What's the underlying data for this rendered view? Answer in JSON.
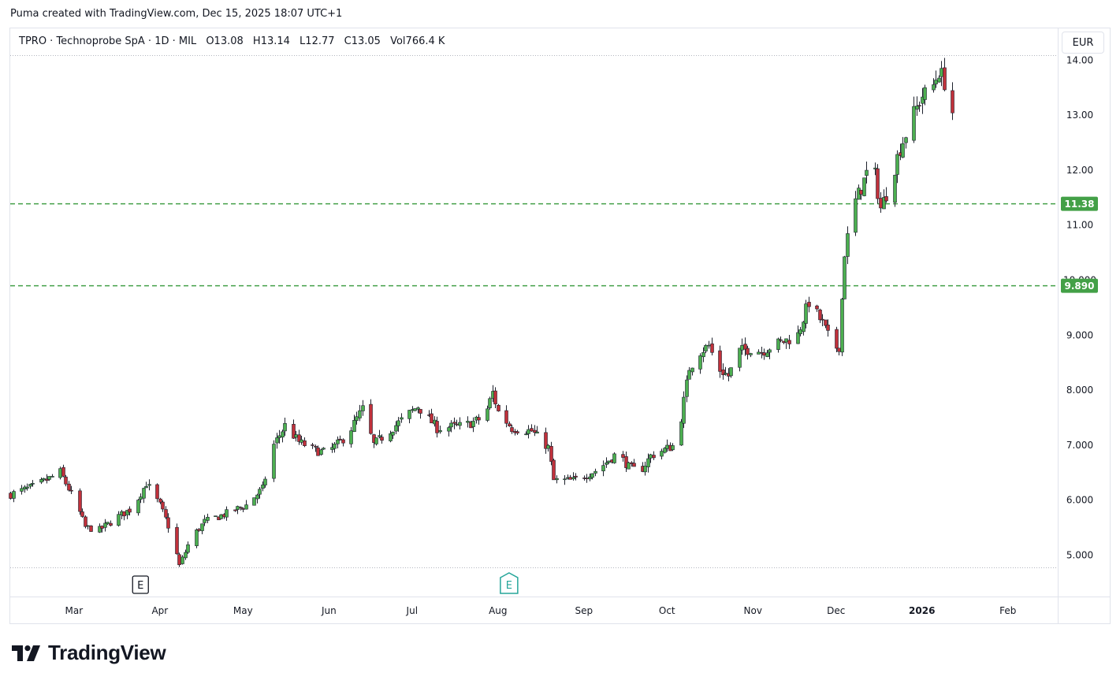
{
  "caption": "Puma created with TradingView.com, Dec 15, 2025 18:07 UTC+1",
  "legend": {
    "symbol": "TPRO · Technoprobe SpA · 1D · MIL",
    "o_label": "O",
    "o_value": "13.08",
    "h_label": "H",
    "h_value": "13.14",
    "l_label": "L",
    "l_value": "12.77",
    "c_label": "C",
    "c_value": "13.05",
    "vol_label": "Vol",
    "vol_value": "766.4 K"
  },
  "currency": "EUR",
  "brand": "TradingView",
  "colors": {
    "up": "#4caf50",
    "down": "#c0313b",
    "line": "#43a047",
    "text": "#131722",
    "grid_text": "#787b86"
  },
  "chart_data": {
    "type": "candlestick",
    "y_ticks": [
      "5.000",
      "6.000",
      "7.000",
      "8.000",
      "9.000",
      "10.000",
      "11.00",
      "12.00",
      "13.00",
      "14.00"
    ],
    "ylim": [
      4.5,
      14.1
    ],
    "x_ticks": [
      "Mar",
      "Apr",
      "May",
      "Jun",
      "Jul",
      "Aug",
      "Sep",
      "Oct",
      "Nov",
      "Dec",
      "2026",
      "Feb"
    ],
    "x_tick_dates": [
      "2025-03-01",
      "2025-04-01",
      "2025-05-01",
      "2025-06-01",
      "2025-07-01",
      "2025-08-01",
      "2025-09-01",
      "2025-10-01",
      "2025-11-01",
      "2025-12-01",
      "2026-01-01",
      "2026-02-01"
    ],
    "xlim": [
      "2025-02-06",
      "2026-02-19"
    ],
    "horizontal_lines": [
      {
        "label": "11.38",
        "value": 11.38
      },
      {
        "label": "9.890",
        "value": 9.89
      }
    ],
    "earnings_markers": [
      {
        "label": "E",
        "date": "2025-03-25",
        "style": "past"
      },
      {
        "label": "E",
        "date": "2025-08-05",
        "style": "upcoming"
      }
    ],
    "anchors": [
      [
        "2025-02-06",
        6.1
      ],
      [
        "2025-02-15",
        6.25
      ],
      [
        "2025-02-24",
        6.5
      ],
      [
        "2025-03-02",
        5.9
      ],
      [
        "2025-03-05",
        5.5
      ],
      [
        "2025-03-10",
        5.45
      ],
      [
        "2025-03-17",
        5.7
      ],
      [
        "2025-03-22",
        5.85
      ],
      [
        "2025-03-27",
        6.3
      ],
      [
        "2025-04-01",
        5.9
      ],
      [
        "2025-04-05",
        5.4
      ],
      [
        "2025-04-08",
        4.8
      ],
      [
        "2025-04-12",
        5.3
      ],
      [
        "2025-04-17",
        5.6
      ],
      [
        "2025-04-25",
        5.75
      ],
      [
        "2025-05-02",
        5.9
      ],
      [
        "2025-05-08",
        6.2
      ],
      [
        "2025-05-12",
        7.0
      ],
      [
        "2025-05-16",
        7.35
      ],
      [
        "2025-05-21",
        7.05
      ],
      [
        "2025-05-27",
        6.9
      ],
      [
        "2025-05-31",
        6.85
      ],
      [
        "2025-06-05",
        7.05
      ],
      [
        "2025-06-09",
        7.3
      ],
      [
        "2025-06-13",
        7.65
      ],
      [
        "2025-06-17",
        7.0
      ],
      [
        "2025-06-26",
        7.4
      ],
      [
        "2025-07-03",
        7.7
      ],
      [
        "2025-07-10",
        7.3
      ],
      [
        "2025-07-20",
        7.35
      ],
      [
        "2025-07-27",
        7.5
      ],
      [
        "2025-07-30",
        7.95
      ],
      [
        "2025-08-01",
        7.6
      ],
      [
        "2025-08-06",
        7.3
      ],
      [
        "2025-08-13",
        7.25
      ],
      [
        "2025-08-19",
        6.95
      ],
      [
        "2025-08-21",
        6.35
      ],
      [
        "2025-08-28",
        6.35
      ],
      [
        "2025-09-06",
        6.55
      ],
      [
        "2025-09-13",
        6.85
      ],
      [
        "2025-09-17",
        6.6
      ],
      [
        "2025-09-21",
        6.5
      ],
      [
        "2025-09-25",
        6.8
      ],
      [
        "2025-10-04",
        7.0
      ],
      [
        "2025-10-06",
        7.5
      ],
      [
        "2025-10-09",
        8.4
      ],
      [
        "2025-10-13",
        8.7
      ],
      [
        "2025-10-16",
        8.8
      ],
      [
        "2025-10-19",
        8.4
      ],
      [
        "2025-10-23",
        8.25
      ],
      [
        "2025-10-27",
        8.7
      ],
      [
        "2025-10-31",
        8.75
      ],
      [
        "2025-11-04",
        8.7
      ],
      [
        "2025-11-08",
        8.8
      ],
      [
        "2025-11-13",
        8.9
      ],
      [
        "2025-11-17",
        9.0
      ],
      [
        "2025-11-21",
        9.6
      ],
      [
        "2025-11-23",
        9.45
      ],
      [
        "2025-11-26",
        9.2
      ],
      [
        "2025-11-30",
        8.75
      ],
      [
        "2025-12-02",
        8.8
      ],
      [
        "2025-12-04",
        10.5
      ],
      [
        "2025-12-07",
        11.3
      ],
      [
        "2025-12-11",
        11.8
      ],
      [
        "2025-12-14",
        12.2
      ],
      [
        "2025-12-17",
        11.3
      ],
      [
        "2025-12-20",
        11.7
      ],
      [
        "2025-12-24",
        12.4
      ],
      [
        "2025-12-28",
        12.9
      ],
      [
        "2026-01-01",
        13.35
      ],
      [
        "2026-01-04",
        13.4
      ],
      [
        "2026-01-07",
        13.8
      ],
      [
        "2026-01-10",
        13.5
      ],
      [
        "2026-01-12",
        13.05
      ]
    ]
  }
}
